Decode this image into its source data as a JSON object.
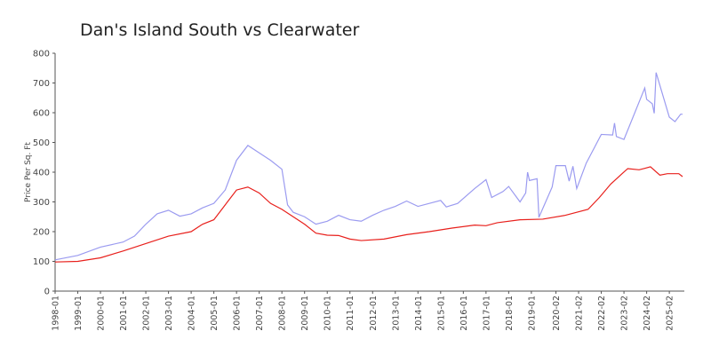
{
  "chart_data": {
    "type": "line",
    "title": "Dan's Island South vs Clearwater",
    "y_label": "Price Per Sq. Ft",
    "xlim": [
      "1998-01",
      "2025-09"
    ],
    "xticks": [
      "1998-01",
      "1999-01",
      "2000-01",
      "2001-01",
      "2002-01",
      "2003-01",
      "2004-01",
      "2005-01",
      "2006-01",
      "2007-01",
      "2008-01",
      "2009-01",
      "2010-01",
      "2011-01",
      "2012-01",
      "2013-01",
      "2014-01",
      "2015-01",
      "2016-01",
      "2017-01",
      "2018-01",
      "2019-01",
      "2020-02",
      "2021-02",
      "2022-02",
      "2023-02",
      "2024-02",
      "2025-02"
    ],
    "ylim": [
      0,
      800
    ],
    "yticks": [
      0,
      100,
      200,
      300,
      400,
      500,
      600,
      700,
      800
    ],
    "grid": false,
    "series": [
      {
        "color": "#9b9bf0",
        "x": [
          "1998-01",
          "1999-01",
          "2000-01",
          "2001-01",
          "2001-07",
          "2002-01",
          "2002-07",
          "2003-01",
          "2003-07",
          "2004-01",
          "2004-07",
          "2005-01",
          "2005-07",
          "2006-01",
          "2006-07",
          "2007-01",
          "2007-07",
          "2008-01",
          "2008-04",
          "2008-07",
          "2009-01",
          "2009-07",
          "2010-01",
          "2010-07",
          "2011-01",
          "2011-07",
          "2012-01",
          "2012-07",
          "2013-01",
          "2013-07",
          "2014-01",
          "2014-07",
          "2015-01",
          "2015-04",
          "2015-10",
          "2016-07",
          "2017-01",
          "2017-04",
          "2017-10",
          "2018-01",
          "2018-07",
          "2018-10",
          "2018-11",
          "2018-12",
          "2019-04",
          "2019-05",
          "2019-12",
          "2020-02",
          "2020-07",
          "2020-09",
          "2020-11",
          "2021-01",
          "2021-06",
          "2022-02",
          "2022-08",
          "2022-09",
          "2022-10",
          "2023-02",
          "2024-01",
          "2024-02",
          "2024-05",
          "2024-06",
          "2024-07",
          "2025-02",
          "2025-05",
          "2025-08",
          "2025-09"
        ],
        "values": [
          105,
          120,
          148,
          165,
          185,
          225,
          260,
          272,
          252,
          260,
          280,
          295,
          340,
          440,
          490,
          465,
          440,
          410,
          290,
          265,
          250,
          225,
          235,
          255,
          240,
          235,
          255,
          272,
          285,
          303,
          285,
          295,
          305,
          283,
          295,
          345,
          375,
          315,
          335,
          352,
          300,
          330,
          400,
          372,
          378,
          248,
          350,
          422,
          422,
          370,
          420,
          345,
          430,
          527,
          525,
          565,
          520,
          510,
          683,
          645,
          630,
          598,
          735,
          585,
          570,
          595,
          595
        ]
      },
      {
        "color": "#e8201c",
        "x": [
          "1998-01",
          "1999-01",
          "2000-01",
          "2001-01",
          "2002-01",
          "2003-01",
          "2004-01",
          "2004-07",
          "2005-01",
          "2005-07",
          "2006-01",
          "2006-07",
          "2007-01",
          "2007-07",
          "2008-01",
          "2008-07",
          "2009-01",
          "2009-07",
          "2010-01",
          "2010-07",
          "2011-01",
          "2011-07",
          "2012-07",
          "2013-07",
          "2014-07",
          "2015-07",
          "2016-07",
          "2017-01",
          "2017-07",
          "2018-07",
          "2019-07",
          "2020-07",
          "2021-07",
          "2022-01",
          "2022-07",
          "2023-01",
          "2023-04",
          "2023-10",
          "2024-01",
          "2024-04",
          "2024-09",
          "2025-01",
          "2025-07",
          "2025-09"
        ],
        "values": [
          98,
          100,
          112,
          135,
          160,
          185,
          200,
          225,
          240,
          290,
          340,
          350,
          330,
          295,
          275,
          250,
          225,
          195,
          188,
          187,
          175,
          170,
          175,
          190,
          200,
          212,
          222,
          220,
          230,
          240,
          242,
          255,
          275,
          315,
          360,
          395,
          412,
          408,
          413,
          418,
          390,
          395,
          395,
          385
        ]
      }
    ]
  }
}
